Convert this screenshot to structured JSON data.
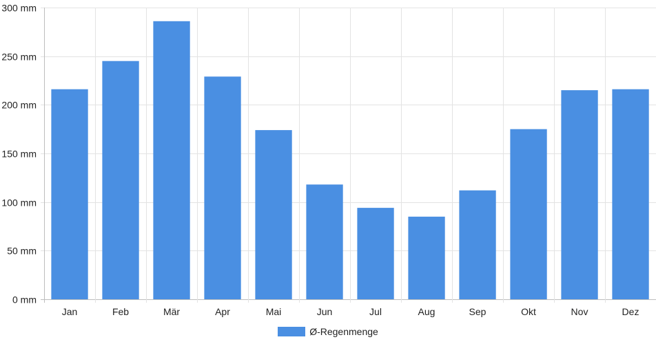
{
  "chart_data": {
    "type": "bar",
    "categories": [
      "Jan",
      "Feb",
      "Mär",
      "Apr",
      "Mai",
      "Jun",
      "Jul",
      "Aug",
      "Sep",
      "Okt",
      "Nov",
      "Dez"
    ],
    "series": [
      {
        "name": "Ø-Regenmenge",
        "values": [
          216,
          245,
          286,
          229,
          174,
          118,
          94,
          85,
          112,
          175,
          215,
          216
        ],
        "color": "#4a8fe2"
      }
    ],
    "ylim": [
      0,
      300
    ],
    "yticks": [
      0,
      50,
      100,
      150,
      200,
      250,
      300
    ],
    "ytick_suffix": " mm",
    "grid": true,
    "legend_position": "bottom-center"
  }
}
